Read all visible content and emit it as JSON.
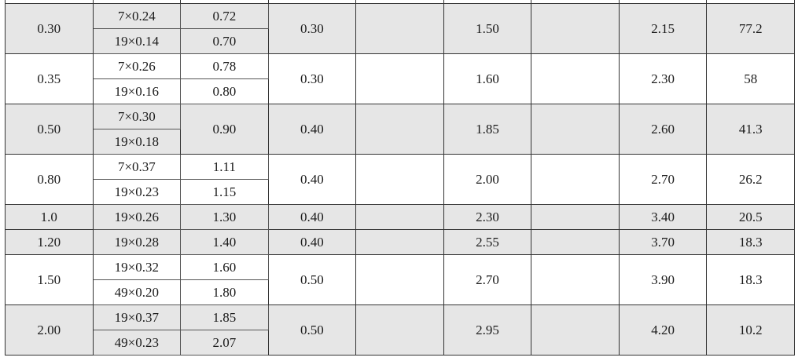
{
  "table": {
    "rows": [
      {
        "shade": "gray",
        "c1": "0.30",
        "wires": [
          "7×0.24",
          "19×0.14"
        ],
        "sizes": [
          "0.72",
          "0.70"
        ],
        "c4": "0.30",
        "c5": "",
        "c6": "1.50",
        "c7": "",
        "c8": "2.15",
        "c9": "77.2"
      },
      {
        "shade": "white",
        "c1": "0.35",
        "wires": [
          "7×0.26",
          "19×0.16"
        ],
        "sizes": [
          "0.78",
          "0.80"
        ],
        "c4": "0.30",
        "c5": "",
        "c6": "1.60",
        "c7": "",
        "c8": "2.30",
        "c9": "58"
      },
      {
        "shade": "gray",
        "c1": "0.50",
        "wires": [
          "7×0.30",
          "19×0.18"
        ],
        "sizes": [
          "0.90"
        ],
        "c4": "0.40",
        "c5": "",
        "c6": "1.85",
        "c7": "",
        "c8": "2.60",
        "c9": "41.3"
      },
      {
        "shade": "white",
        "c1": "0.80",
        "wires": [
          "7×0.37",
          "19×0.23"
        ],
        "sizes": [
          "1.11",
          "1.15"
        ],
        "c4": "0.40",
        "c5": "",
        "c6": "2.00",
        "c7": "",
        "c8": "2.70",
        "c9": "26.2"
      },
      {
        "shade": "gray",
        "c1": "1.0",
        "wires": [
          "19×0.26"
        ],
        "sizes": [
          "1.30"
        ],
        "c4": "0.40",
        "c5": "",
        "c6": "2.30",
        "c7": "",
        "c8": "3.40",
        "c9": "20.5"
      },
      {
        "shade": "gray",
        "c1": "1.20",
        "wires": [
          "19×0.28"
        ],
        "sizes": [
          "1.40"
        ],
        "c4": "0.40",
        "c5": "",
        "c6": "2.55",
        "c7": "",
        "c8": "3.70",
        "c9": "18.3"
      },
      {
        "shade": "white",
        "c1": "1.50",
        "wires": [
          "19×0.32",
          "49×0.20"
        ],
        "sizes": [
          "1.60",
          "1.80"
        ],
        "c4": "0.50",
        "c5": "",
        "c6": "2.70",
        "c7": "",
        "c8": "3.90",
        "c9": "18.3"
      },
      {
        "shade": "gray",
        "c1": "2.00",
        "wires": [
          "19×0.37",
          "49×0.23"
        ],
        "sizes": [
          "1.85",
          "2.07"
        ],
        "c4": "0.50",
        "c5": "",
        "c6": "2.95",
        "c7": "",
        "c8": "4.20",
        "c9": "10.2"
      }
    ]
  }
}
